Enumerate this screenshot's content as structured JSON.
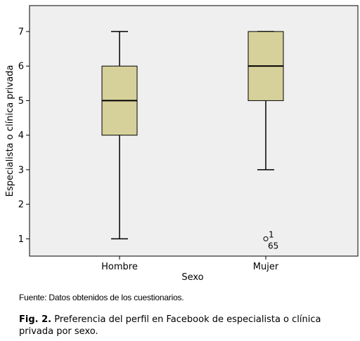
{
  "chart_data": {
    "type": "boxplot",
    "xlabel": "Sexo",
    "ylabel": "Especialista o clínica privada",
    "ylim": [
      0.5,
      7.75
    ],
    "yticks": [
      1,
      2,
      3,
      4,
      5,
      6,
      7
    ],
    "grid": false,
    "colors": {
      "plot_bg": "#efefef",
      "box_fill": "#d6d19a",
      "line": "#000000"
    },
    "categories": [
      "Hombre",
      "Mujer"
    ],
    "boxes": [
      {
        "name": "Hombre",
        "min": 1,
        "q1": 4,
        "median": 5,
        "q3": 6,
        "max": 7,
        "outliers": []
      },
      {
        "name": "Mujer",
        "min": 3,
        "q1": 5,
        "median": 6,
        "q3": 7,
        "max": 7,
        "outliers": [
          {
            "value": 1,
            "labels": [
              "1",
              "65"
            ]
          }
        ]
      }
    ]
  },
  "source_note": "Fuente: Datos obtenidos de los cuestionarios.",
  "caption": {
    "label": "Fig. 2.",
    "text": " Preferencia del perfil en Facebook de especialista o clínica privada por sexo."
  }
}
